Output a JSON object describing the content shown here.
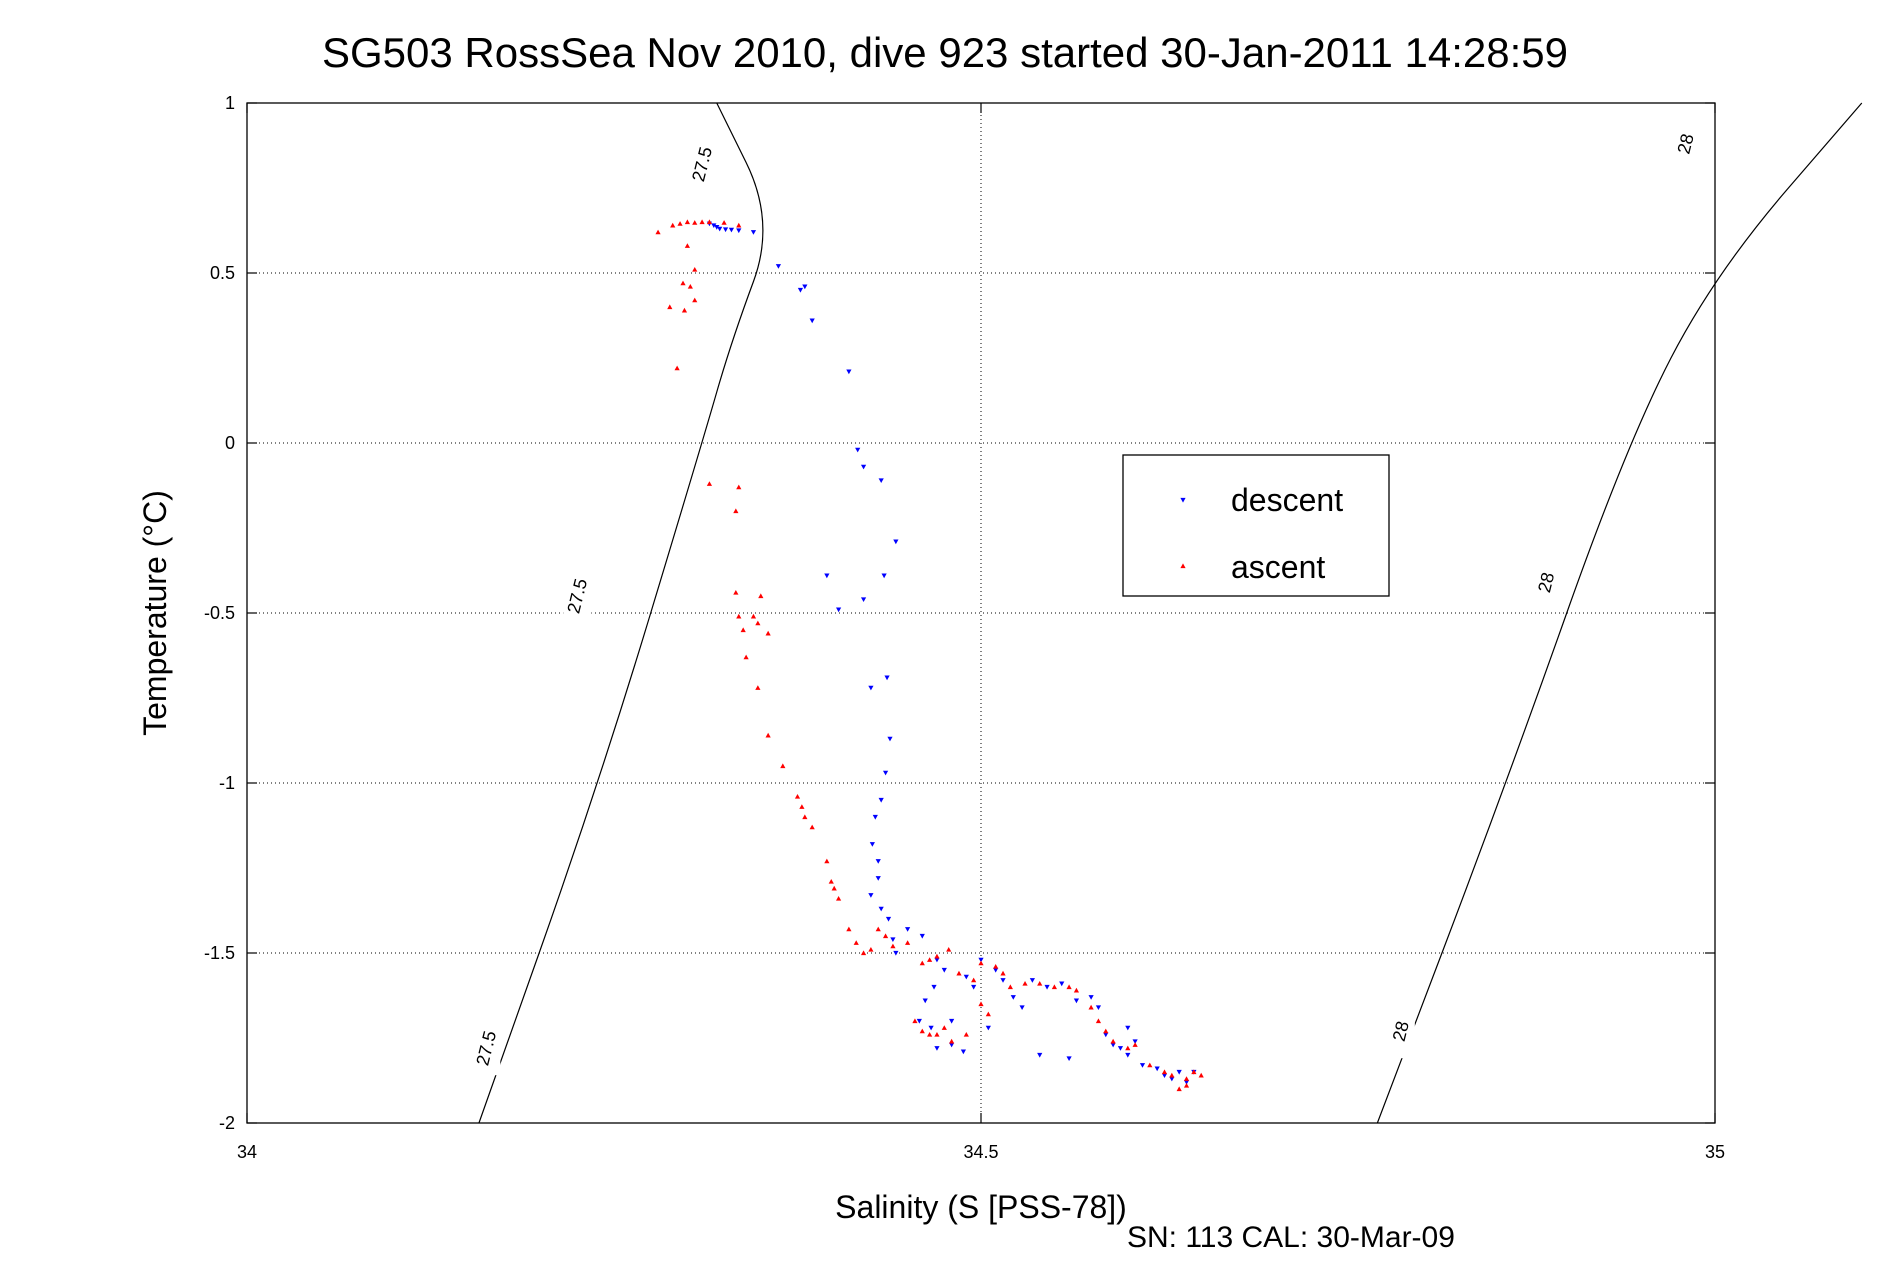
{
  "chart_data": {
    "type": "scatter",
    "title": "SG503 RossSea Nov 2010, dive 923 started 30-Jan-2011 14:28:59",
    "xlabel": "Salinity (S [PSS-78])",
    "ylabel": "Temperature (°C)",
    "xlim": [
      34,
      35
    ],
    "ylim": [
      -2,
      1
    ],
    "x_ticks": [
      "34",
      "34.5",
      "35"
    ],
    "y_ticks": [
      "1",
      "0.5",
      "0",
      "-0.5",
      "-1",
      "-1.5",
      "-2"
    ],
    "grid": "on (dotted)",
    "legend_position": "center-right",
    "footer": "SN: 113  CAL: 30-Mar-09",
    "contours": [
      {
        "value": "27.5",
        "points": [
          [
            34.158,
            -2.0
          ],
          [
            34.24,
            -1.0
          ],
          [
            34.31,
            0.0
          ],
          [
            34.33,
            0.3
          ],
          [
            34.36,
            0.65
          ],
          [
            34.32,
            1.0
          ]
        ],
        "labels": [
          [
            34.163,
            -1.78
          ],
          [
            34.225,
            -0.45
          ],
          [
            34.31,
            0.82
          ]
        ]
      },
      {
        "value": "28",
        "points": [
          [
            34.77,
            -2.0
          ],
          [
            34.858,
            -1.0
          ],
          [
            34.94,
            0.0
          ],
          [
            35.0,
            0.5
          ],
          [
            35.1,
            1.0
          ]
        ],
        "labels": [
          [
            34.786,
            -1.73
          ],
          [
            34.885,
            -0.41
          ],
          [
            34.98,
            0.88
          ]
        ]
      }
    ],
    "series": [
      {
        "name": "descent",
        "color": "#0000ff",
        "marker": "triangle-down",
        "points": [
          [
            34.315,
            0.645
          ],
          [
            34.318,
            0.64
          ],
          [
            34.32,
            0.635
          ],
          [
            34.322,
            0.63
          ],
          [
            34.326,
            0.628
          ],
          [
            34.33,
            0.627
          ],
          [
            34.335,
            0.625
          ],
          [
            34.345,
            0.62
          ],
          [
            34.362,
            0.52
          ],
          [
            34.377,
            0.45
          ],
          [
            34.38,
            0.46
          ],
          [
            34.385,
            0.36
          ],
          [
            34.41,
            0.21
          ],
          [
            34.416,
            -0.02
          ],
          [
            34.42,
            -0.07
          ],
          [
            34.432,
            -0.11
          ],
          [
            34.442,
            -0.29
          ],
          [
            34.434,
            -0.39
          ],
          [
            34.395,
            -0.39
          ],
          [
            34.403,
            -0.49
          ],
          [
            34.42,
            -0.46
          ],
          [
            34.425,
            -0.72
          ],
          [
            34.436,
            -0.69
          ],
          [
            34.438,
            -0.87
          ],
          [
            34.435,
            -0.97
          ],
          [
            34.432,
            -1.05
          ],
          [
            34.428,
            -1.1
          ],
          [
            34.426,
            -1.18
          ],
          [
            34.43,
            -1.23
          ],
          [
            34.43,
            -1.28
          ],
          [
            34.425,
            -1.33
          ],
          [
            34.432,
            -1.37
          ],
          [
            34.437,
            -1.4
          ],
          [
            34.44,
            -1.46
          ],
          [
            34.442,
            -1.5
          ],
          [
            34.45,
            -1.43
          ],
          [
            34.46,
            -1.45
          ],
          [
            34.47,
            -1.52
          ],
          [
            34.475,
            -1.55
          ],
          [
            34.468,
            -1.6
          ],
          [
            34.462,
            -1.64
          ],
          [
            34.458,
            -1.7
          ],
          [
            34.466,
            -1.72
          ],
          [
            34.47,
            -1.78
          ],
          [
            34.48,
            -1.77
          ],
          [
            34.488,
            -1.79
          ],
          [
            34.49,
            -1.57
          ],
          [
            34.495,
            -1.6
          ],
          [
            34.5,
            -1.52
          ],
          [
            34.51,
            -1.55
          ],
          [
            34.515,
            -1.58
          ],
          [
            34.522,
            -1.63
          ],
          [
            34.528,
            -1.66
          ],
          [
            34.535,
            -1.58
          ],
          [
            34.545,
            -1.6
          ],
          [
            34.555,
            -1.59
          ],
          [
            34.565,
            -1.64
          ],
          [
            34.575,
            -1.63
          ],
          [
            34.58,
            -1.66
          ],
          [
            34.585,
            -1.74
          ],
          [
            34.59,
            -1.77
          ],
          [
            34.595,
            -1.78
          ],
          [
            34.6,
            -1.8
          ],
          [
            34.605,
            -1.76
          ],
          [
            34.6,
            -1.72
          ],
          [
            34.61,
            -1.83
          ],
          [
            34.62,
            -1.84
          ],
          [
            34.625,
            -1.86
          ],
          [
            34.63,
            -1.87
          ],
          [
            34.635,
            -1.85
          ],
          [
            34.64,
            -1.88
          ],
          [
            34.645,
            -1.85
          ],
          [
            34.54,
            -1.8
          ],
          [
            34.56,
            -1.81
          ],
          [
            34.505,
            -1.72
          ],
          [
            34.48,
            -1.7
          ]
        ]
      },
      {
        "name": "ascent",
        "color": "#ff0000",
        "marker": "triangle-up",
        "points": [
          [
            34.29,
            0.64
          ],
          [
            34.295,
            0.645
          ],
          [
            34.3,
            0.65
          ],
          [
            34.305,
            0.648
          ],
          [
            34.31,
            0.65
          ],
          [
            34.315,
            0.65
          ],
          [
            34.325,
            0.648
          ],
          [
            34.335,
            0.64
          ],
          [
            34.28,
            0.62
          ],
          [
            34.3,
            0.58
          ],
          [
            34.305,
            0.51
          ],
          [
            34.297,
            0.47
          ],
          [
            34.302,
            0.46
          ],
          [
            34.305,
            0.42
          ],
          [
            34.288,
            0.4
          ],
          [
            34.298,
            0.39
          ],
          [
            34.293,
            0.22
          ],
          [
            34.315,
            -0.12
          ],
          [
            34.335,
            -0.13
          ],
          [
            34.333,
            -0.2
          ],
          [
            34.333,
            -0.44
          ],
          [
            34.35,
            -0.45
          ],
          [
            34.335,
            -0.51
          ],
          [
            34.345,
            -0.51
          ],
          [
            34.338,
            -0.55
          ],
          [
            34.348,
            -0.53
          ],
          [
            34.355,
            -0.56
          ],
          [
            34.34,
            -0.63
          ],
          [
            34.348,
            -0.72
          ],
          [
            34.355,
            -0.86
          ],
          [
            34.365,
            -0.95
          ],
          [
            34.375,
            -1.04
          ],
          [
            34.378,
            -1.07
          ],
          [
            34.38,
            -1.1
          ],
          [
            34.385,
            -1.13
          ],
          [
            34.395,
            -1.23
          ],
          [
            34.398,
            -1.29
          ],
          [
            34.4,
            -1.31
          ],
          [
            34.403,
            -1.34
          ],
          [
            34.41,
            -1.43
          ],
          [
            34.415,
            -1.47
          ],
          [
            34.42,
            -1.5
          ],
          [
            34.425,
            -1.49
          ],
          [
            34.43,
            -1.43
          ],
          [
            34.435,
            -1.45
          ],
          [
            34.44,
            -1.48
          ],
          [
            34.45,
            -1.47
          ],
          [
            34.46,
            -1.53
          ],
          [
            34.465,
            -1.52
          ],
          [
            34.47,
            -1.51
          ],
          [
            34.478,
            -1.49
          ],
          [
            34.485,
            -1.56
          ],
          [
            34.495,
            -1.58
          ],
          [
            34.5,
            -1.53
          ],
          [
            34.51,
            -1.54
          ],
          [
            34.515,
            -1.56
          ],
          [
            34.52,
            -1.6
          ],
          [
            34.53,
            -1.59
          ],
          [
            34.54,
            -1.59
          ],
          [
            34.55,
            -1.6
          ],
          [
            34.56,
            -1.6
          ],
          [
            34.565,
            -1.61
          ],
          [
            34.575,
            -1.66
          ],
          [
            34.58,
            -1.7
          ],
          [
            34.585,
            -1.73
          ],
          [
            34.59,
            -1.76
          ],
          [
            34.6,
            -1.78
          ],
          [
            34.605,
            -1.77
          ],
          [
            34.615,
            -1.83
          ],
          [
            34.625,
            -1.85
          ],
          [
            34.63,
            -1.86
          ],
          [
            34.64,
            -1.87
          ],
          [
            34.645,
            -1.85
          ],
          [
            34.65,
            -1.86
          ],
          [
            34.635,
            -1.9
          ],
          [
            34.64,
            -1.89
          ],
          [
            34.455,
            -1.7
          ],
          [
            34.46,
            -1.73
          ],
          [
            34.465,
            -1.74
          ],
          [
            34.47,
            -1.74
          ],
          [
            34.48,
            -1.76
          ],
          [
            34.49,
            -1.74
          ],
          [
            34.475,
            -1.72
          ],
          [
            34.5,
            -1.65
          ],
          [
            34.505,
            -1.68
          ]
        ]
      }
    ]
  }
}
